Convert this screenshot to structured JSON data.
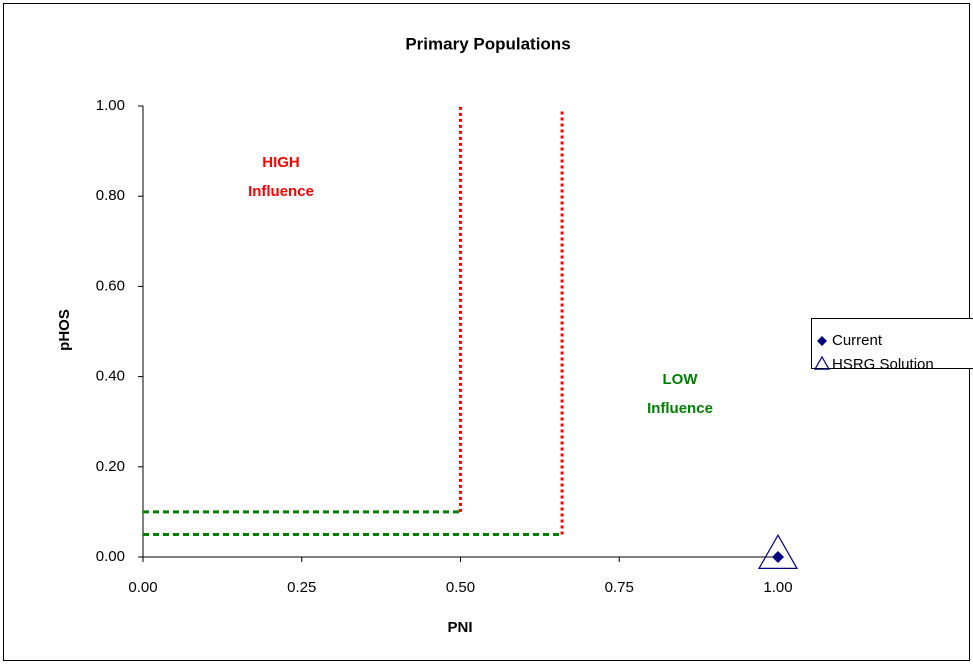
{
  "chart_data": {
    "type": "scatter",
    "title": "Primary Populations",
    "x_label": "PNI",
    "y_label": "pHOS",
    "xlim": [
      0,
      1
    ],
    "ylim": [
      0,
      1
    ],
    "xticks": [
      {
        "value": 0,
        "label": "0.00"
      },
      {
        "value": 0.25,
        "label": "0.25"
      },
      {
        "value": 0.5,
        "label": "0.50"
      },
      {
        "value": 0.75,
        "label": "0.75"
      },
      {
        "value": 1,
        "label": "1.00"
      }
    ],
    "yticks": [
      {
        "value": 0,
        "label": "0.00"
      },
      {
        "value": 0.2,
        "label": "0.20"
      },
      {
        "value": 0.4,
        "label": "0.40"
      },
      {
        "value": 0.6,
        "label": "0.60"
      },
      {
        "value": 0.8,
        "label": "0.80"
      },
      {
        "value": 1,
        "label": "1.00"
      }
    ],
    "grid": false,
    "legend": "right",
    "series": [
      {
        "name": "Current",
        "color": "#000080",
        "marker": "diamond",
        "x": [
          1.0
        ],
        "values": [
          0.0
        ]
      },
      {
        "name": "HSRG Solution",
        "color": "#000080",
        "marker": "triangle",
        "x": [
          1.0
        ],
        "values": [
          0.0
        ]
      }
    ],
    "reference_lines": [
      {
        "color": "#ff0000",
        "style": "dotted",
        "x": [
          0.5,
          0.5
        ],
        "values": [
          0.1,
          1.0
        ]
      },
      {
        "color": "#ff0000",
        "style": "dotted",
        "x": [
          0.66,
          0.66
        ],
        "values": [
          0.05,
          0.99
        ]
      },
      {
        "color": "#008000",
        "style": "dashed",
        "x": [
          0,
          0.5
        ],
        "values": [
          0.1,
          0.1
        ]
      },
      {
        "color": "#008000",
        "style": "dashed",
        "x": [
          0,
          0.66
        ],
        "values": [
          0.05,
          0.05
        ]
      }
    ],
    "annotations": [
      {
        "text": [
          "HIGH",
          "Influence"
        ],
        "color": "#ff0000"
      },
      {
        "text": [
          "LOW",
          "Influence"
        ],
        "color": "#008000"
      }
    ]
  }
}
